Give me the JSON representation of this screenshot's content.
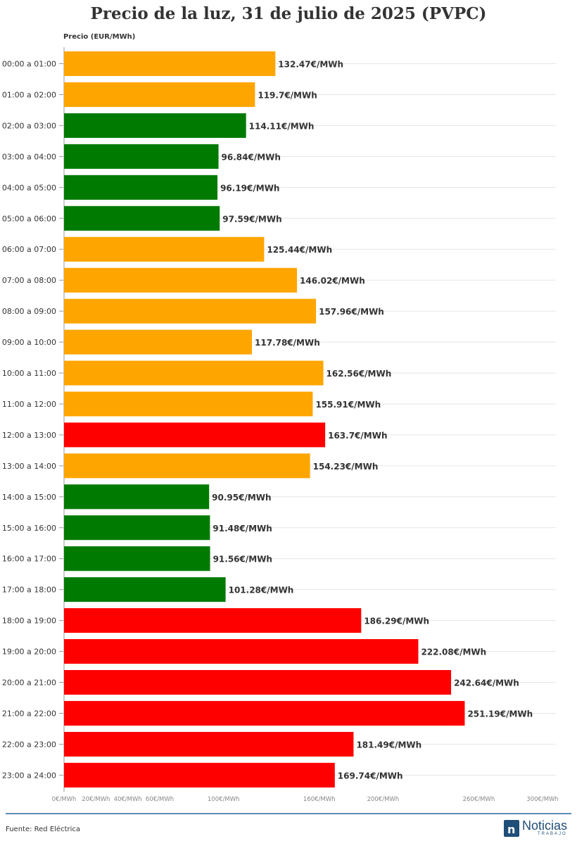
{
  "title": "Precio de la luz, 31 de julio de 2025 (PVPC)",
  "footer": {
    "source": "Fuente: Red Eléctrica",
    "logo_text": "Noticias",
    "logo_sub": "TRABAJO"
  },
  "colors": {
    "green": "#007a00",
    "orange": "#ffa500",
    "red": "#ff0000",
    "grid": "#e6e6e6",
    "footer_line": "#5b8fb5",
    "brand": "#1f4e79"
  },
  "chart_data": {
    "type": "bar",
    "orientation": "horizontal",
    "title": "Precio de la luz, 31 de julio de 2025 (PVPC)",
    "ylabel": "Precio (EUR/MWh)",
    "xlim": [
      0,
      300
    ],
    "grid": true,
    "x_ticks": [
      {
        "value": 0,
        "label": "0€/MWh"
      },
      {
        "value": 20,
        "label": "20€/MWh"
      },
      {
        "value": 40,
        "label": "40€/MWh"
      },
      {
        "value": 60,
        "label": "60€/MWh"
      },
      {
        "value": 100,
        "label": "100€/MWh"
      },
      {
        "value": 160,
        "label": "160€/MWh"
      },
      {
        "value": 200,
        "label": "200€/MWh"
      },
      {
        "value": 260,
        "label": "260€/MWh"
      },
      {
        "value": 300,
        "label": "300€/MWh"
      }
    ],
    "categories": [
      "00:00 a 01:00",
      "01:00 a 02:00",
      "02:00 a 03:00",
      "03:00 a 04:00",
      "04:00 a 05:00",
      "05:00 a 06:00",
      "06:00 a 07:00",
      "07:00 a 08:00",
      "08:00 a 09:00",
      "09:00 a 10:00",
      "10:00 a 11:00",
      "11:00 a 12:00",
      "12:00 a 13:00",
      "13:00 a 14:00",
      "14:00 a 15:00",
      "15:00 a 16:00",
      "16:00 a 17:00",
      "17:00 a 18:00",
      "18:00 a 19:00",
      "19:00 a 20:00",
      "20:00 a 21:00",
      "21:00 a 22:00",
      "22:00 a 23:00",
      "23:00 a 24:00"
    ],
    "values": [
      132.47,
      119.7,
      114.11,
      96.84,
      96.19,
      97.59,
      125.44,
      146.02,
      157.96,
      117.78,
      162.56,
      155.91,
      163.7,
      154.23,
      90.95,
      91.48,
      91.56,
      101.28,
      186.29,
      222.08,
      242.64,
      251.19,
      181.49,
      169.74
    ],
    "value_labels": [
      "132.47€/MWh",
      "119.7€/MWh",
      "114.11€/MWh",
      "96.84€/MWh",
      "96.19€/MWh",
      "97.59€/MWh",
      "125.44€/MWh",
      "146.02€/MWh",
      "157.96€/MWh",
      "117.78€/MWh",
      "162.56€/MWh",
      "155.91€/MWh",
      "163.7€/MWh",
      "154.23€/MWh",
      "90.95€/MWh",
      "91.48€/MWh",
      "91.56€/MWh",
      "101.28€/MWh",
      "186.29€/MWh",
      "222.08€/MWh",
      "242.64€/MWh",
      "251.19€/MWh",
      "181.49€/MWh",
      "169.74€/MWh"
    ],
    "bar_colors": [
      "orange",
      "orange",
      "green",
      "green",
      "green",
      "green",
      "orange",
      "orange",
      "orange",
      "orange",
      "orange",
      "orange",
      "red",
      "orange",
      "green",
      "green",
      "green",
      "green",
      "red",
      "red",
      "red",
      "red",
      "red",
      "red"
    ]
  }
}
